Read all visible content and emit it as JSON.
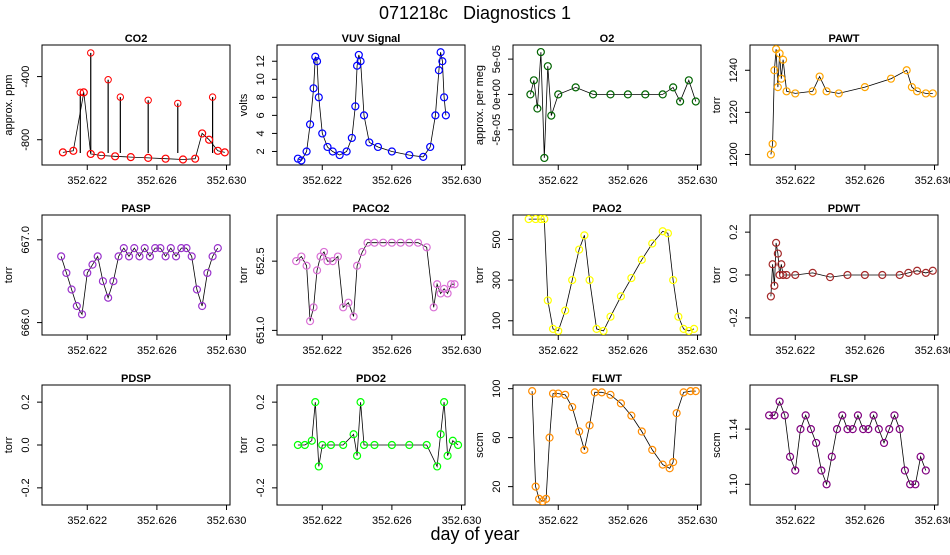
{
  "figure": {
    "title": "071218c   Diagnostics 1",
    "xlabel": "day of year"
  },
  "chart_data": [
    {
      "type": "scatter",
      "title": "CO2",
      "ylabel": "approx. ppm",
      "color": "#ff0000",
      "xlim": [
        352.6194,
        352.6302
      ],
      "ylim": [
        -960,
        -200
      ],
      "xticks": [
        "352.622",
        "352.626",
        "352.630"
      ],
      "yticks": [
        "-800",
        "-400"
      ],
      "x": [
        352.6206,
        352.6212,
        352.6218,
        352.6222,
        352.6228,
        352.6236,
        352.6245,
        352.6255,
        352.6265,
        352.6275,
        352.6282,
        352.6286,
        352.629,
        352.6295,
        352.6299
      ],
      "y": [
        -880,
        -870,
        -500,
        -890,
        -900,
        -905,
        -910,
        -915,
        -920,
        -925,
        -920,
        -760,
        -800,
        -870,
        -880
      ],
      "spikes": [
        [
          352.6216,
          -500
        ],
        [
          352.6222,
          -250
        ],
        [
          352.6232,
          -420
        ],
        [
          352.6239,
          -530
        ],
        [
          352.6255,
          -550
        ],
        [
          352.6272,
          -570
        ],
        [
          352.6292,
          -530
        ]
      ]
    },
    {
      "type": "scatter",
      "title": "VUV Signal",
      "ylabel": "volts",
      "color": "#0000ff",
      "xlim": [
        352.6194,
        352.6302
      ],
      "ylim": [
        0.5,
        13.8
      ],
      "xticks": [
        "352.622",
        "352.626",
        "352.630"
      ],
      "yticks": [
        "2",
        "4",
        "6",
        "8",
        "10",
        "12"
      ],
      "x": [
        352.6206,
        352.6208,
        352.6211,
        352.6213,
        352.6215,
        352.6216,
        352.6217,
        352.6218,
        352.622,
        352.6223,
        352.6226,
        352.623,
        352.6234,
        352.6237,
        352.6239,
        352.624,
        352.6241,
        352.6242,
        352.6244,
        352.6247,
        352.6252,
        352.626,
        352.627,
        352.6278,
        352.6282,
        352.6285,
        352.6287,
        352.6288,
        352.6289,
        352.629,
        352.6291
      ],
      "y": [
        1.2,
        1.0,
        2.0,
        5.0,
        9.0,
        12.5,
        12.0,
        8.0,
        4.0,
        2.5,
        2.0,
        1.6,
        2.0,
        3.5,
        7.0,
        11.5,
        12.7,
        12.0,
        6.0,
        3.0,
        2.5,
        2.0,
        1.6,
        1.4,
        2.5,
        6.0,
        11.0,
        13.0,
        12.0,
        8.0,
        6.0
      ]
    },
    {
      "type": "scatter",
      "title": "O2",
      "ylabel": "approx. per meg",
      "color": "#006400",
      "xlim": [
        352.6194,
        352.6302
      ],
      "ylim": [
        -0.0001,
        7e-05
      ],
      "xticks": [
        "352.622",
        "352.626",
        "352.630"
      ],
      "yticks": [
        "-5e-05",
        "0e+00",
        "5e-05"
      ],
      "x": [
        352.6204,
        352.6206,
        352.6208,
        352.621,
        352.6212,
        352.6214,
        352.6216,
        352.622,
        352.623,
        352.624,
        352.625,
        352.626,
        352.627,
        352.628,
        352.6286,
        352.629,
        352.6295,
        352.6299
      ],
      "y": [
        0.0,
        2e-05,
        -2e-05,
        6e-05,
        -9e-05,
        4e-05,
        -3e-05,
        0.0,
        1e-05,
        0.0,
        0.0,
        0.0,
        0.0,
        0.0,
        1e-05,
        -1e-05,
        2e-05,
        -1e-05
      ]
    },
    {
      "type": "scatter",
      "title": "PAWT",
      "ylabel": "torr",
      "color": "#ffa500",
      "xlim": [
        352.6194,
        352.6302
      ],
      "ylim": [
        1195,
        1252
      ],
      "xticks": [
        "352.622",
        "352.626",
        "352.630"
      ],
      "yticks": [
        "1200",
        "1220",
        "1240"
      ],
      "x": [
        352.6206,
        352.6207,
        352.6208,
        352.6209,
        352.621,
        352.6211,
        352.6212,
        352.6213,
        352.6215,
        352.622,
        352.623,
        352.6234,
        352.6238,
        352.6245,
        352.626,
        352.6275,
        352.6284,
        352.6287,
        352.629,
        352.6295,
        352.6299
      ],
      "y": [
        1200,
        1205,
        1240,
        1250,
        1232,
        1248,
        1236,
        1245,
        1230,
        1229,
        1230,
        1237,
        1230,
        1229,
        1232,
        1236,
        1240,
        1232,
        1230,
        1229,
        1229
      ]
    },
    {
      "type": "scatter",
      "title": "PASP",
      "ylabel": "torr",
      "color": "#9932cc",
      "xlim": [
        352.6194,
        352.6302
      ],
      "ylim": [
        665.85,
        667.3
      ],
      "xticks": [
        "352.622",
        "352.626",
        "352.630"
      ],
      "yticks": [
        "666.0",
        "667.0"
      ],
      "x": [
        352.6205,
        352.6208,
        352.6211,
        352.6214,
        352.6217,
        352.622,
        352.6223,
        352.6226,
        352.6229,
        352.6232,
        352.6235,
        352.6238,
        352.6241,
        352.6244,
        352.6247,
        352.625,
        352.6253,
        352.6256,
        352.6259,
        352.6262,
        352.6265,
        352.6268,
        352.6271,
        352.6274,
        352.6277,
        352.628,
        352.6283,
        352.6286,
        352.6289,
        352.6292,
        352.6295
      ],
      "y": [
        666.8,
        666.6,
        666.4,
        666.2,
        666.1,
        666.6,
        666.7,
        666.8,
        666.5,
        666.3,
        666.5,
        666.8,
        666.9,
        666.8,
        666.9,
        666.8,
        666.9,
        666.8,
        666.9,
        666.9,
        666.8,
        666.9,
        666.8,
        666.9,
        666.9,
        666.8,
        666.4,
        666.2,
        666.6,
        666.8,
        666.9
      ]
    },
    {
      "type": "scatter",
      "title": "PACO2",
      "ylabel": "torr",
      "color": "#da70d6",
      "xlim": [
        352.6194,
        352.6302
      ],
      "ylim": [
        650.9,
        653.5
      ],
      "xticks": [
        "352.622",
        "352.626",
        "352.630"
      ],
      "yticks": [
        "651.0",
        "652.5"
      ],
      "x": [
        352.6205,
        352.6208,
        352.6211,
        352.6213,
        352.6215,
        352.6217,
        352.6219,
        352.6221,
        352.6223,
        352.6226,
        352.6229,
        352.6232,
        352.6235,
        352.6238,
        352.624,
        352.6243,
        352.6246,
        352.625,
        352.6255,
        352.626,
        352.6265,
        352.627,
        352.6275,
        352.628,
        352.6284,
        352.6286,
        352.6288,
        352.629,
        352.6292,
        352.6294,
        352.6296
      ],
      "y": [
        652.5,
        652.6,
        652.4,
        651.2,
        651.5,
        652.3,
        652.6,
        652.7,
        652.5,
        652.5,
        652.6,
        651.5,
        651.6,
        651.3,
        652.4,
        652.7,
        652.9,
        652.9,
        652.9,
        652.9,
        652.9,
        652.9,
        652.9,
        652.8,
        651.5,
        652.0,
        651.8,
        651.9,
        651.8,
        652.0,
        652.0
      ]
    },
    {
      "type": "scatter",
      "title": "PAO2",
      "ylabel": "torr",
      "color": "#ffff00",
      "xlim": [
        352.6194,
        352.6302
      ],
      "ylim": [
        30,
        620
      ],
      "xticks": [
        "352.622",
        "352.626",
        "352.630"
      ],
      "yticks": [
        "100",
        "300",
        "500"
      ],
      "x": [
        352.6203,
        352.6207,
        352.621,
        352.6212,
        352.6214,
        352.6217,
        352.622,
        352.6224,
        352.6228,
        352.6232,
        352.6235,
        352.6238,
        352.6242,
        352.6246,
        352.625,
        352.6256,
        352.6262,
        352.6268,
        352.6274,
        352.628,
        352.6283,
        352.6286,
        352.6289,
        352.6292,
        352.6295,
        352.6298
      ],
      "y": [
        600,
        600,
        600,
        600,
        200,
        60,
        50,
        150,
        300,
        450,
        520,
        300,
        60,
        50,
        120,
        220,
        310,
        400,
        480,
        540,
        530,
        300,
        120,
        60,
        50,
        60
      ]
    },
    {
      "type": "scatter",
      "title": "PDWT",
      "ylabel": "torr",
      "color": "#a52a2a",
      "xlim": [
        352.6194,
        352.6302
      ],
      "ylim": [
        -0.28,
        0.28
      ],
      "xticks": [
        "352.622",
        "352.626",
        "352.630"
      ],
      "yticks": [
        "-0.2",
        "0.0",
        "0.2"
      ],
      "x": [
        352.6206,
        352.6207,
        352.6208,
        352.6209,
        352.621,
        352.6211,
        352.6212,
        352.6213,
        352.6215,
        352.622,
        352.623,
        352.624,
        352.625,
        352.626,
        352.627,
        352.628,
        352.6285,
        352.629,
        352.6295,
        352.6299
      ],
      "y": [
        -0.1,
        0.05,
        -0.05,
        0.15,
        0.1,
        0.0,
        0.05,
        0.0,
        0.0,
        0.0,
        0.01,
        -0.01,
        0.0,
        0.0,
        0.0,
        0.0,
        0.01,
        0.02,
        0.01,
        0.02
      ]
    },
    {
      "type": "scatter",
      "title": "PDSP",
      "ylabel": "torr",
      "color": "#000000",
      "xlim": [
        352.6194,
        352.6302
      ],
      "ylim": [
        -0.28,
        0.28
      ],
      "xticks": [
        "352.622",
        "352.626",
        "352.630"
      ],
      "yticks": [
        "-0.2",
        "0.0",
        "0.2"
      ],
      "x": [],
      "y": []
    },
    {
      "type": "scatter",
      "title": "PDO2",
      "ylabel": "torr",
      "color": "#00ff00",
      "xlim": [
        352.6194,
        352.6302
      ],
      "ylim": [
        -0.28,
        0.28
      ],
      "xticks": [
        "352.622",
        "352.626",
        "352.630"
      ],
      "yticks": [
        "-0.2",
        "0.0",
        "0.2"
      ],
      "x": [
        352.6206,
        352.621,
        352.6214,
        352.6216,
        352.6218,
        352.622,
        352.6225,
        352.6232,
        352.6238,
        352.624,
        352.6242,
        352.6244,
        352.625,
        352.626,
        352.627,
        352.628,
        352.6286,
        352.6288,
        352.629,
        352.6292,
        352.6295,
        352.6298
      ],
      "y": [
        0.0,
        0.0,
        0.02,
        0.2,
        -0.1,
        0.0,
        0.0,
        0.0,
        0.05,
        -0.05,
        0.2,
        0.0,
        0.0,
        0.0,
        0.0,
        0.0,
        -0.1,
        0.05,
        0.2,
        -0.05,
        0.02,
        0.0
      ]
    },
    {
      "type": "scatter",
      "title": "FLWT",
      "ylabel": "sccm",
      "color": "#ff8c00",
      "xlim": [
        352.6194,
        352.6302
      ],
      "ylim": [
        5,
        103
      ],
      "xticks": [
        "352.622",
        "352.626",
        "352.630"
      ],
      "yticks": [
        "20",
        "60",
        "100"
      ],
      "x": [
        352.6205,
        352.6207,
        352.6209,
        352.6211,
        352.6213,
        352.6215,
        352.6217,
        352.622,
        352.6224,
        352.6228,
        352.6232,
        352.6235,
        352.6238,
        352.6241,
        352.6245,
        352.625,
        352.6256,
        352.6262,
        352.6268,
        352.6274,
        352.628,
        352.6284,
        352.6286,
        352.6288,
        352.6292,
        352.6296,
        352.6299
      ],
      "y": [
        98,
        20,
        10,
        8,
        10,
        60,
        96,
        96,
        95,
        85,
        65,
        50,
        70,
        97,
        97,
        95,
        88,
        78,
        65,
        50,
        38,
        35,
        40,
        80,
        97,
        98,
        98
      ]
    },
    {
      "type": "scatter",
      "title": "FLSP",
      "ylabel": "sccm",
      "color": "#800080",
      "xlim": [
        352.6194,
        352.6302
      ],
      "ylim": [
        1.085,
        1.172
      ],
      "xticks": [
        "352.622",
        "352.626",
        "352.630"
      ],
      "yticks": [
        "1.10",
        "1.14"
      ],
      "x": [
        352.6205,
        352.6208,
        352.6211,
        352.6214,
        352.6217,
        352.622,
        352.6223,
        352.6226,
        352.6229,
        352.6232,
        352.6235,
        352.6238,
        352.6241,
        352.6244,
        352.6247,
        352.625,
        352.6253,
        352.6256,
        352.6259,
        352.6262,
        352.6265,
        352.6268,
        352.6271,
        352.6274,
        352.6277,
        352.628,
        352.6283,
        352.6286,
        352.6289,
        352.6292,
        352.6295
      ],
      "y": [
        1.15,
        1.15,
        1.16,
        1.15,
        1.12,
        1.11,
        1.14,
        1.15,
        1.14,
        1.13,
        1.11,
        1.1,
        1.12,
        1.14,
        1.15,
        1.14,
        1.14,
        1.15,
        1.14,
        1.14,
        1.15,
        1.14,
        1.13,
        1.14,
        1.15,
        1.14,
        1.11,
        1.1,
        1.1,
        1.12,
        1.11
      ]
    }
  ]
}
